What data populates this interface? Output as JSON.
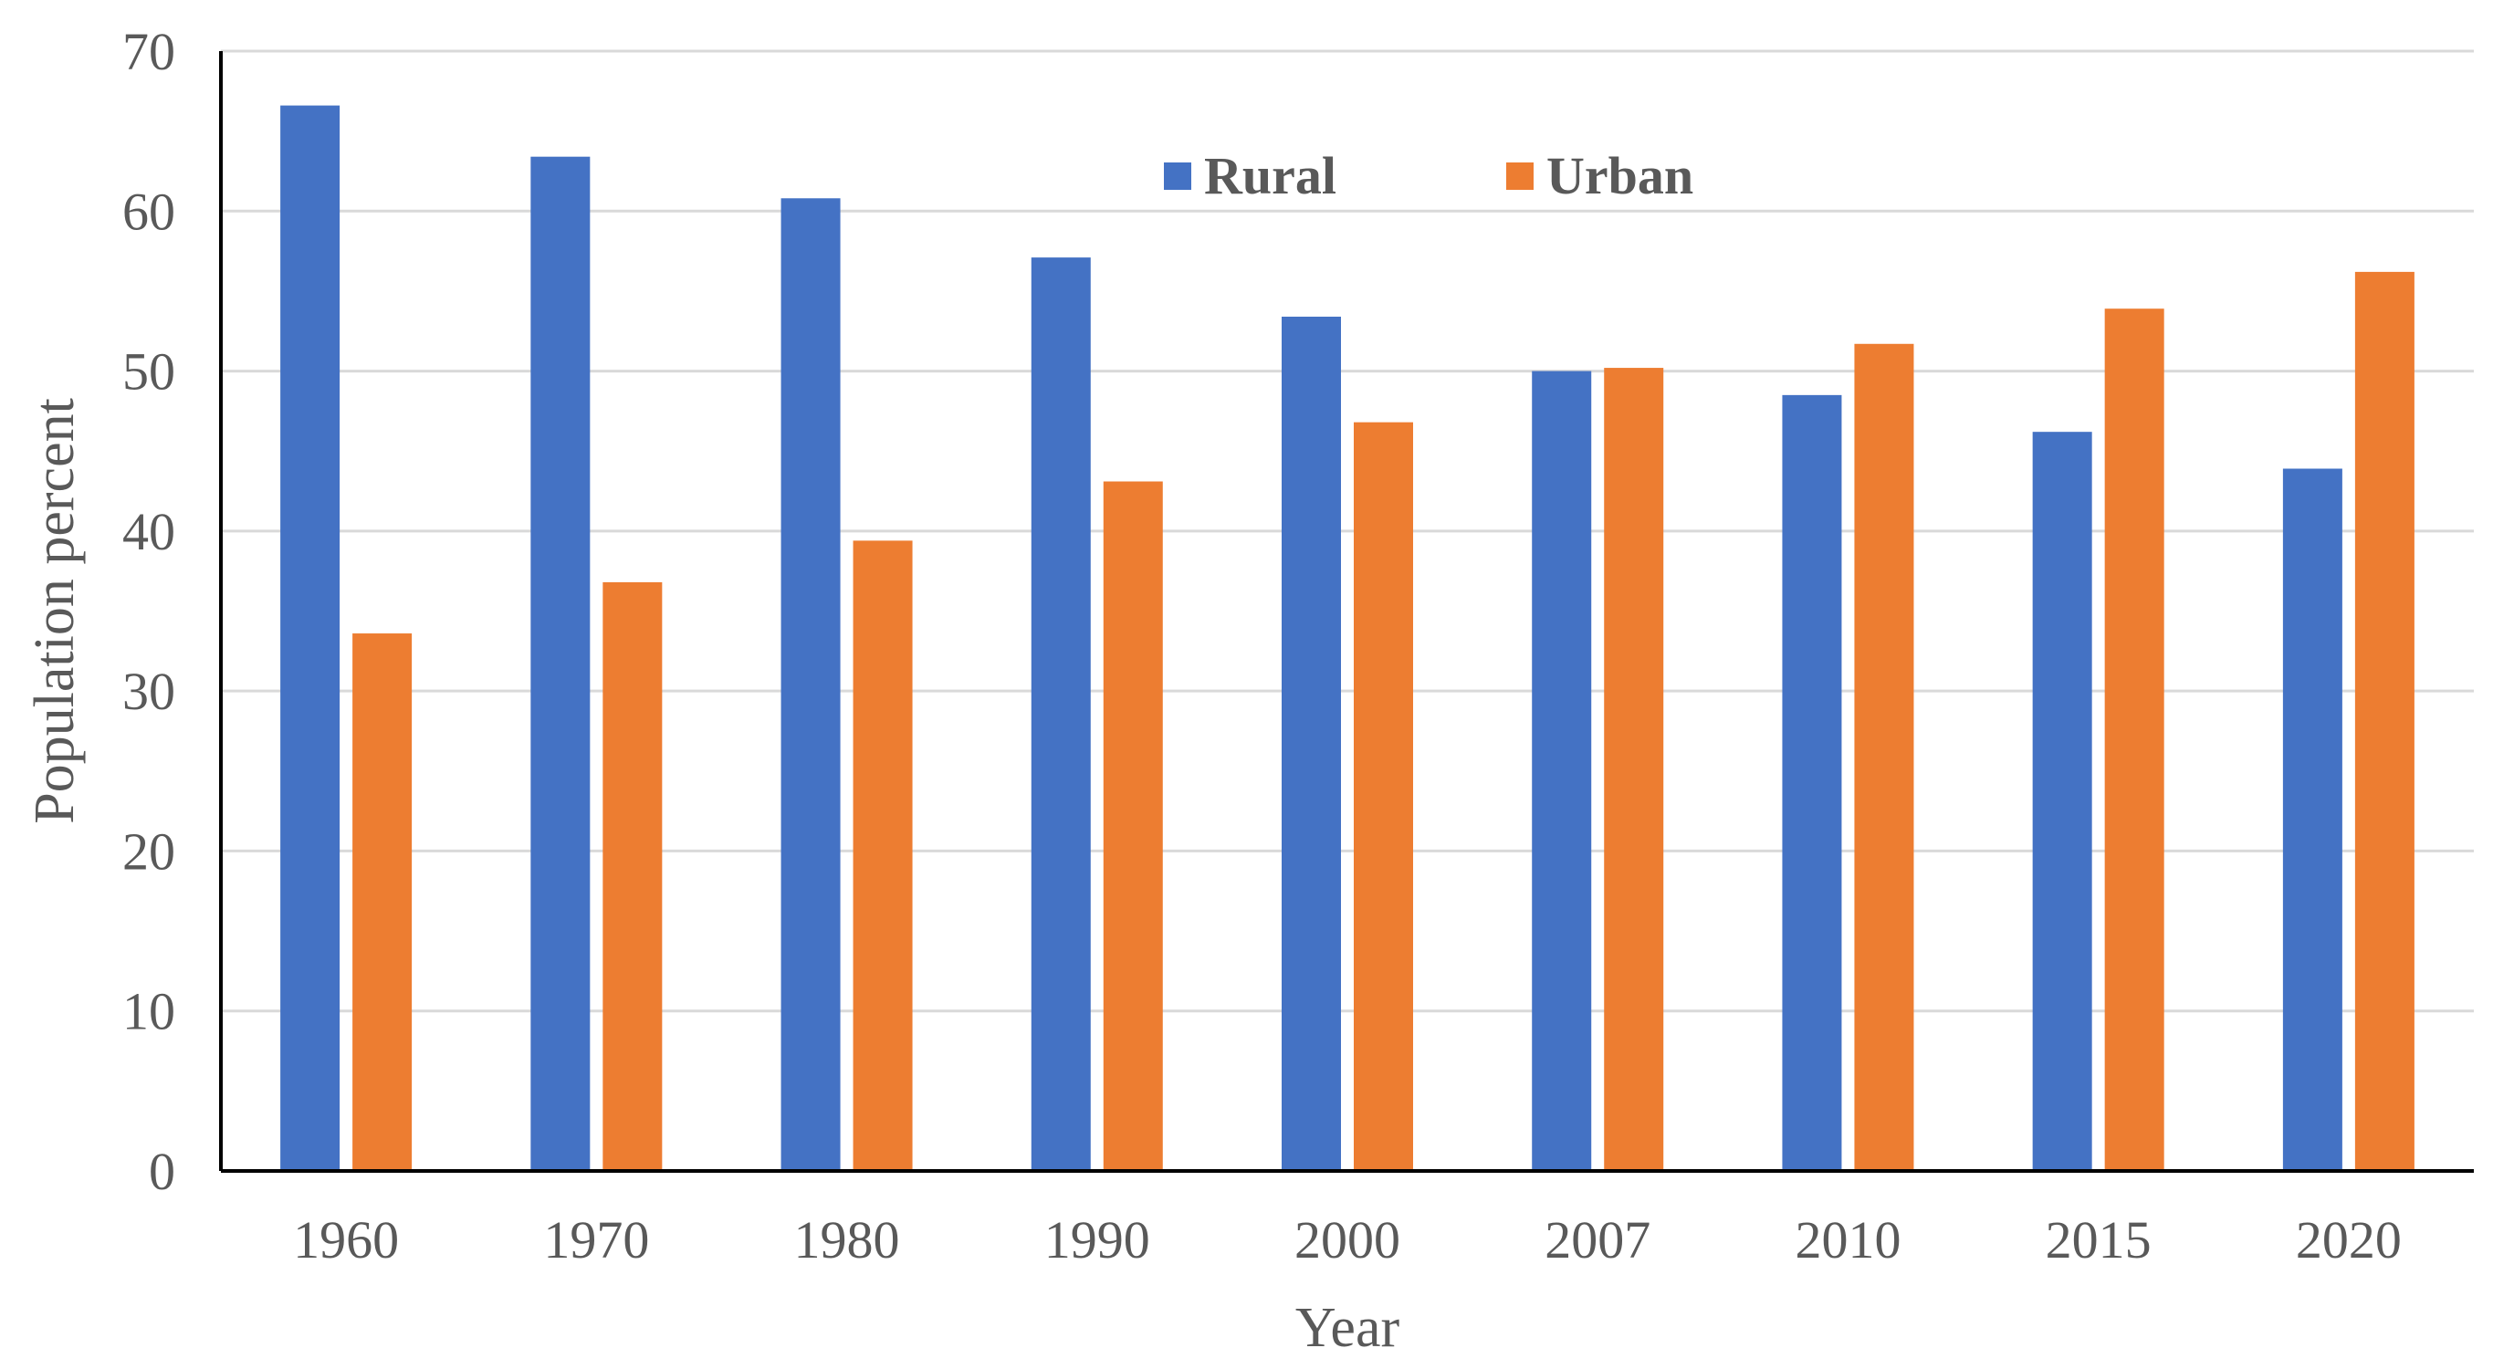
{
  "chart_data": {
    "type": "bar",
    "xlabel": "Year",
    "ylabel": "Population percent",
    "categories": [
      "1960",
      "1970",
      "1980",
      "1990",
      "2000",
      "2007",
      "2010",
      "2015",
      "2020"
    ],
    "series": [
      {
        "name": "Rural",
        "color": "#4472C4",
        "values": [
          66.6,
          63.4,
          60.8,
          57.1,
          53.4,
          50.0,
          48.5,
          46.2,
          43.9
        ]
      },
      {
        "name": "Urban",
        "color": "#ED7D31",
        "values": [
          33.6,
          36.8,
          39.4,
          43.1,
          46.8,
          50.2,
          51.7,
          53.9,
          56.2
        ]
      }
    ],
    "ylim": [
      0,
      70
    ],
    "yticks": [
      "0",
      "10",
      "20",
      "30",
      "40",
      "50",
      "60",
      "70"
    ],
    "grid": true,
    "legend_position": "top-center"
  }
}
